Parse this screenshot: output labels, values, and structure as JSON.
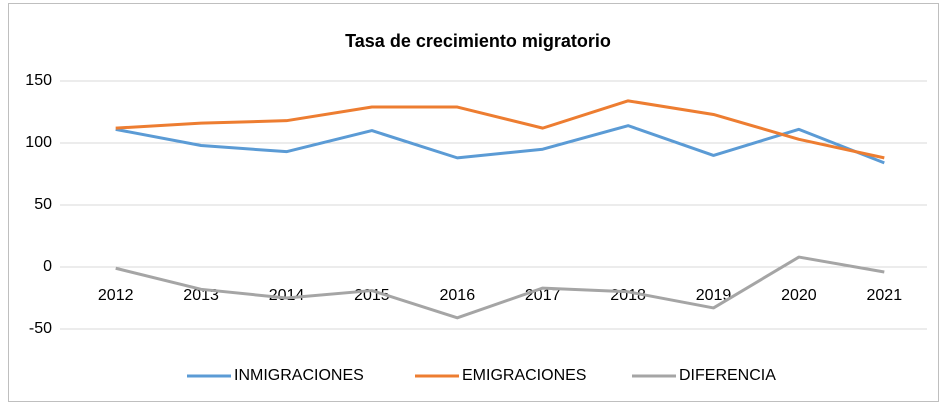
{
  "chart_data": {
    "type": "line",
    "title": "Tasa de crecimiento migratorio",
    "categories": [
      "2012",
      "2013",
      "2014",
      "2015",
      "2016",
      "2017",
      "2018",
      "2019",
      "2020",
      "2021"
    ],
    "series": [
      {
        "name": "INMIGRACIONES",
        "color": "#5b9bd5",
        "values": [
          111,
          98,
          93,
          110,
          88,
          95,
          114,
          90,
          111,
          84
        ]
      },
      {
        "name": "EMIGRACIONES",
        "color": "#ed7d31",
        "values": [
          112,
          116,
          118,
          129,
          129,
          112,
          134,
          123,
          103,
          88
        ]
      },
      {
        "name": "DIFERENCIA",
        "color": "#a5a5a5",
        "values": [
          -1,
          -18,
          -25,
          -19,
          -41,
          -17,
          -20,
          -33,
          8,
          -4
        ]
      }
    ],
    "ylim": [
      -50,
      150
    ],
    "yticks": [
      -50,
      0,
      50,
      100,
      150
    ],
    "grid": true,
    "legend": "bottom"
  }
}
